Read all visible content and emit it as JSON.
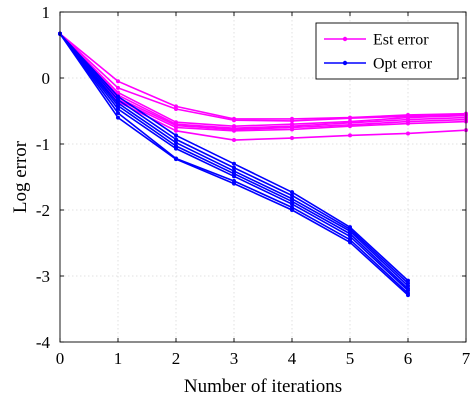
{
  "chart_data": {
    "type": "line",
    "xlabel": "Number of iterations",
    "ylabel": "Log error",
    "xlim": [
      0,
      7
    ],
    "ylim": [
      -4,
      1
    ],
    "xticks": [
      0,
      1,
      2,
      3,
      4,
      5,
      6,
      7
    ],
    "yticks": [
      1,
      0,
      -1,
      -2,
      -3,
      -4
    ],
    "grid": true,
    "legend_position": "top-right",
    "legend": [
      {
        "label": "Est error",
        "color": "#ff00ff"
      },
      {
        "label": "Opt error",
        "color": "#0000ff"
      }
    ],
    "series": [
      {
        "group": "Est error",
        "color": "#ff00ff",
        "x": [
          0,
          1,
          2,
          3,
          4,
          5,
          6,
          7
        ],
        "y": [
          0.67,
          -0.05,
          -0.43,
          -0.62,
          -0.62,
          -0.6,
          -0.56,
          -0.54
        ]
      },
      {
        "group": "Est error",
        "color": "#ff00ff",
        "x": [
          0,
          1,
          2,
          3,
          4,
          5,
          6,
          7
        ],
        "y": [
          0.67,
          -0.15,
          -0.47,
          -0.64,
          -0.65,
          -0.61,
          -0.58,
          -0.56
        ]
      },
      {
        "group": "Est error",
        "color": "#ff00ff",
        "x": [
          0,
          1,
          2,
          3,
          4,
          5,
          6,
          7
        ],
        "y": [
          0.67,
          -0.22,
          -0.67,
          -0.73,
          -0.7,
          -0.66,
          -0.6,
          -0.57
        ]
      },
      {
        "group": "Est error",
        "color": "#ff00ff",
        "x": [
          0,
          1,
          2,
          3,
          4,
          5,
          6,
          7
        ],
        "y": [
          0.67,
          -0.26,
          -0.7,
          -0.76,
          -0.73,
          -0.68,
          -0.63,
          -0.6
        ]
      },
      {
        "group": "Est error",
        "color": "#ff00ff",
        "x": [
          0,
          1,
          2,
          3,
          4,
          5,
          6,
          7
        ],
        "y": [
          0.67,
          -0.3,
          -0.72,
          -0.78,
          -0.75,
          -0.71,
          -0.66,
          -0.63
        ]
      },
      {
        "group": "Est error",
        "color": "#ff00ff",
        "x": [
          0,
          1,
          2,
          3,
          4,
          5,
          6,
          7
        ],
        "y": [
          0.67,
          -0.33,
          -0.75,
          -0.8,
          -0.78,
          -0.73,
          -0.69,
          -0.66
        ]
      },
      {
        "group": "Est error",
        "color": "#ff00ff",
        "x": [
          0,
          1,
          2,
          3,
          4,
          5,
          6,
          7
        ],
        "y": [
          0.67,
          -0.36,
          -0.8,
          -0.94,
          -0.91,
          -0.87,
          -0.84,
          -0.79
        ]
      },
      {
        "group": "Opt error",
        "color": "#0000ff",
        "x": [
          0,
          1,
          2,
          3,
          4,
          5,
          6
        ],
        "y": [
          0.67,
          -0.28,
          -0.87,
          -1.3,
          -1.73,
          -2.26,
          -3.07
        ]
      },
      {
        "group": "Opt error",
        "color": "#0000ff",
        "x": [
          0,
          1,
          2,
          3,
          4,
          5,
          6
        ],
        "y": [
          0.67,
          -0.33,
          -0.93,
          -1.36,
          -1.78,
          -2.29,
          -3.11
        ]
      },
      {
        "group": "Opt error",
        "color": "#0000ff",
        "x": [
          0,
          1,
          2,
          3,
          4,
          5,
          6
        ],
        "y": [
          0.67,
          -0.38,
          -0.98,
          -1.41,
          -1.83,
          -2.32,
          -3.15
        ]
      },
      {
        "group": "Opt error",
        "color": "#0000ff",
        "x": [
          0,
          1,
          2,
          3,
          4,
          5,
          6
        ],
        "y": [
          0.67,
          -0.42,
          -1.03,
          -1.45,
          -1.87,
          -2.36,
          -3.19
        ]
      },
      {
        "group": "Opt error",
        "color": "#0000ff",
        "x": [
          0,
          1,
          2,
          3,
          4,
          5,
          6
        ],
        "y": [
          0.67,
          -0.47,
          -1.07,
          -1.49,
          -1.91,
          -2.4,
          -3.22
        ]
      },
      {
        "group": "Opt error",
        "color": "#0000ff",
        "x": [
          0,
          1,
          2,
          3,
          4,
          5,
          6
        ],
        "y": [
          0.67,
          -0.53,
          -1.22,
          -1.56,
          -1.96,
          -2.45,
          -3.26
        ]
      },
      {
        "group": "Opt error",
        "color": "#0000ff",
        "x": [
          0,
          1,
          2,
          3,
          4,
          5,
          6
        ],
        "y": [
          0.67,
          -0.6,
          -1.23,
          -1.6,
          -2.0,
          -2.49,
          -3.29
        ]
      }
    ]
  }
}
